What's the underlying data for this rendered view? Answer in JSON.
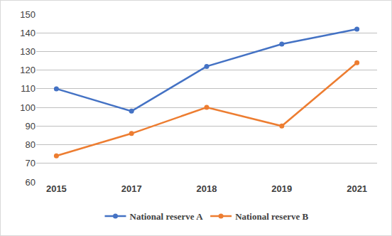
{
  "chart_data": {
    "type": "line",
    "categories": [
      "2015",
      "2017",
      "2018",
      "2019",
      "2021"
    ],
    "series": [
      {
        "name": "National reserve A",
        "color": "#4472c4",
        "values": [
          110,
          98,
          122,
          134,
          142
        ],
        "marker": "circle"
      },
      {
        "name": "National reserve B",
        "color": "#ed7d31",
        "values": [
          74,
          86,
          100,
          90,
          124
        ],
        "marker": "circle"
      }
    ],
    "ylim": [
      60,
      150
    ],
    "yticks": [
      60,
      70,
      80,
      90,
      100,
      110,
      120,
      130,
      140,
      150
    ],
    "grid": true,
    "legend": "bottom"
  }
}
